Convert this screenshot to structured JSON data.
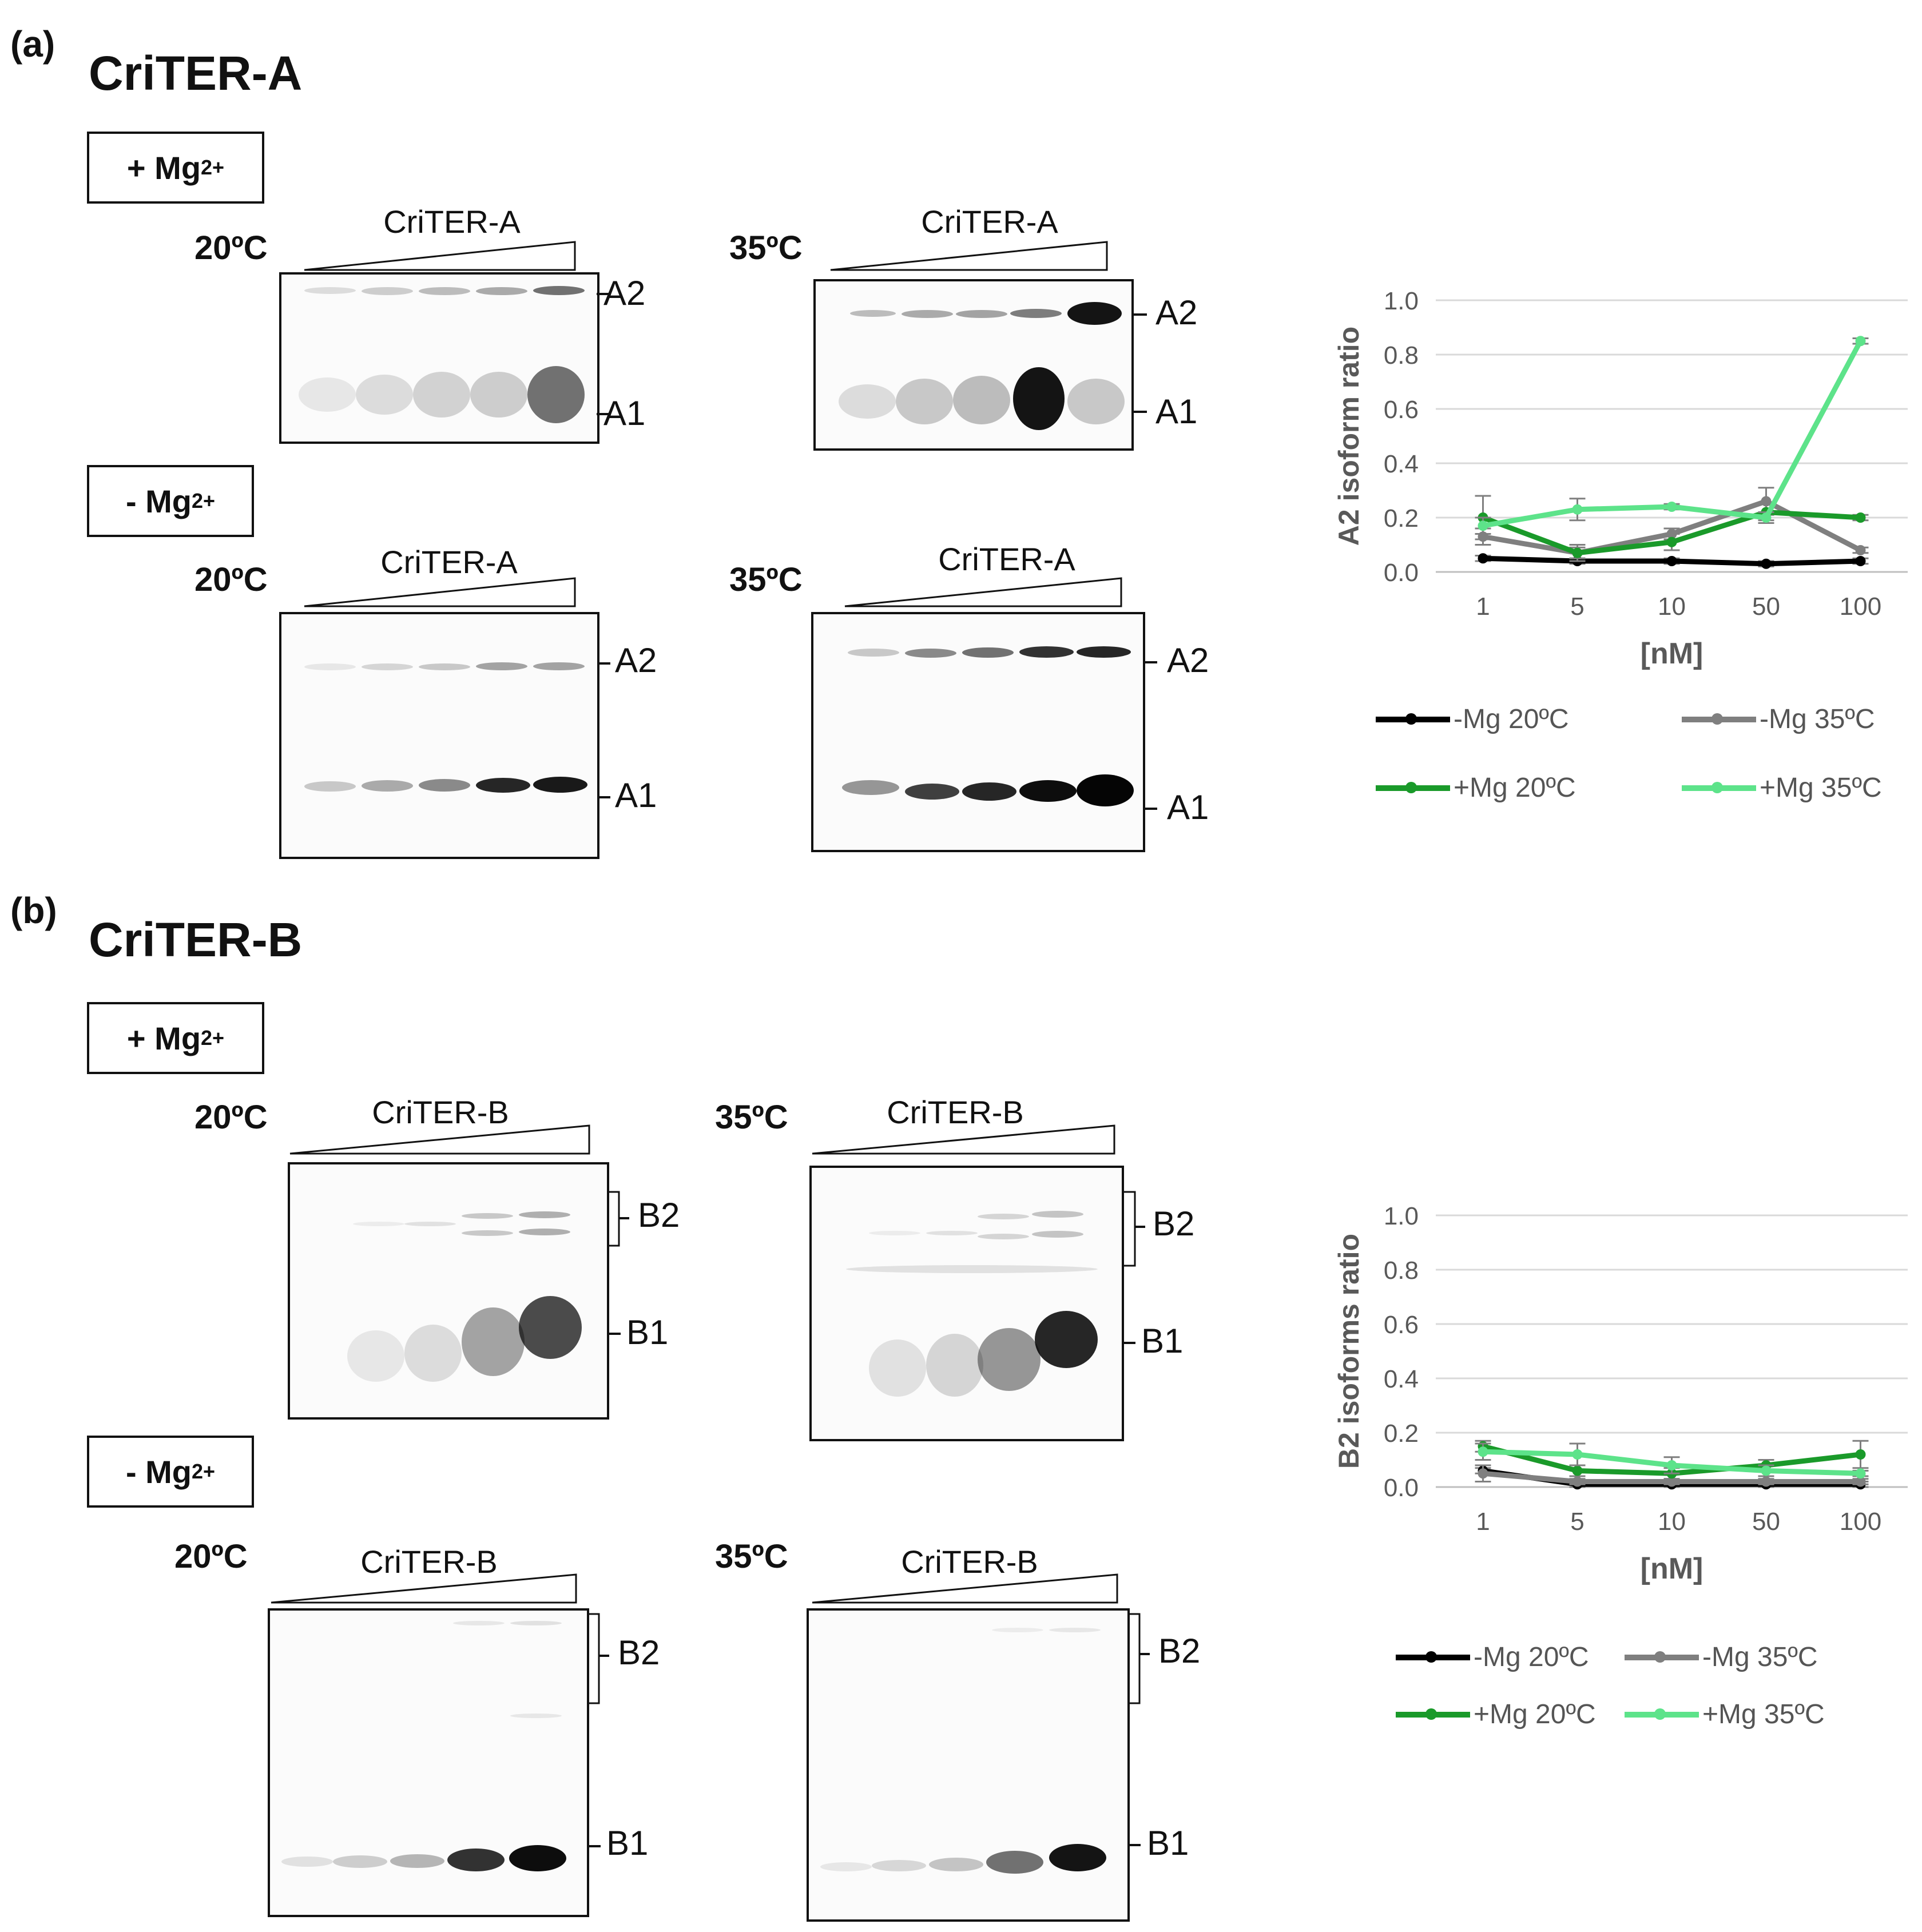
{
  "panel_a": {
    "letter": "(a)",
    "title": "CriTER-A",
    "mg_plus": {
      "text": "+ Mg",
      "sup": "2+"
    },
    "mg_minus": {
      "text": "- Mg",
      "sup": "2+"
    },
    "gels": [
      {
        "temp": "20ºC",
        "label": "CriTER-A",
        "upper": "A2",
        "lower": "A1"
      },
      {
        "temp": "35ºC",
        "label": "CriTER-A",
        "upper": "A2",
        "lower": "A1"
      },
      {
        "temp": "20ºC",
        "label": "CriTER-A",
        "upper": "A2",
        "lower": "A1"
      },
      {
        "temp": "35ºC",
        "label": "CriTER-A",
        "upper": "A2",
        "lower": "A1"
      }
    ]
  },
  "panel_b": {
    "letter": "(b)",
    "title": "CriTER-B",
    "mg_plus": {
      "text": "+ Mg",
      "sup": "2+"
    },
    "mg_minus": {
      "text": "- Mg",
      "sup": "2+"
    },
    "gels": [
      {
        "temp": "20ºC",
        "label": "CriTER-B",
        "upper": "B2",
        "lower": "B1"
      },
      {
        "temp": "35ºC",
        "label": "CriTER-B",
        "upper": "B2",
        "lower": "B1"
      },
      {
        "temp": "20ºC",
        "label": "CriTER-B",
        "upper": "B2",
        "lower": "B1"
      },
      {
        "temp": "35ºC",
        "label": "CriTER-B",
        "upper": "B2",
        "lower": "B1"
      }
    ]
  },
  "chart_data": [
    {
      "type": "line",
      "ylabel": "A2 isoform ratio",
      "xlabel": "[nM]",
      "categories": [
        "1",
        "5",
        "10",
        "50",
        "100"
      ],
      "yticks": [
        "0.0",
        "0.2",
        "0.4",
        "0.6",
        "0.8",
        "1.0"
      ],
      "ylim": [
        0,
        1.0
      ],
      "grid": true,
      "legend": "bottom",
      "series": [
        {
          "name": "-Mg 20ºC",
          "color": "#000000",
          "values": [
            0.05,
            0.04,
            0.04,
            0.03,
            0.04
          ],
          "errors": [
            0.01,
            0.01,
            0.01,
            0.01,
            0.01
          ]
        },
        {
          "name": "-Mg 35ºC",
          "color": "#7f7f7f",
          "values": [
            0.13,
            0.07,
            0.14,
            0.26,
            0.08
          ],
          "errors": [
            0.03,
            0.02,
            0.02,
            0.05,
            0.01
          ]
        },
        {
          "name": "+Mg 20ºC",
          "color": "#1a9a2a",
          "values": [
            0.2,
            0.07,
            0.11,
            0.22,
            0.2
          ],
          "errors": [
            0.08,
            0.03,
            0.03,
            0.03,
            0.01
          ]
        },
        {
          "name": "+Mg 35ºC",
          "color": "#5de38a",
          "values": [
            0.17,
            0.23,
            0.24,
            0.2,
            0.85
          ],
          "errors": [
            0.03,
            0.04,
            0.01,
            0.02,
            0.01
          ]
        }
      ]
    },
    {
      "type": "line",
      "ylabel": "B2 isoforms ratio",
      "xlabel": "[nM]",
      "categories": [
        "1",
        "5",
        "10",
        "50",
        "100"
      ],
      "yticks": [
        "0.0",
        "0.2",
        "0.4",
        "0.6",
        "0.8",
        "1.0"
      ],
      "ylim": [
        0,
        1.0
      ],
      "grid": true,
      "legend": "bottom",
      "series": [
        {
          "name": "-Mg 20ºC",
          "color": "#000000",
          "values": [
            0.06,
            0.01,
            0.01,
            0.01,
            0.01
          ],
          "errors": [
            0.01,
            0.01,
            0.01,
            0.01,
            0.01
          ]
        },
        {
          "name": "-Mg 35ºC",
          "color": "#7f7f7f",
          "values": [
            0.05,
            0.02,
            0.02,
            0.02,
            0.02
          ],
          "errors": [
            0.03,
            0.01,
            0.01,
            0.01,
            0.01
          ]
        },
        {
          "name": "+Mg 20ºC",
          "color": "#1a9a2a",
          "values": [
            0.15,
            0.06,
            0.05,
            0.08,
            0.12
          ],
          "errors": [
            0.02,
            0.02,
            0.02,
            0.02,
            0.05
          ]
        },
        {
          "name": "+Mg 35ºC",
          "color": "#5de38a",
          "values": [
            0.13,
            0.12,
            0.08,
            0.06,
            0.05
          ],
          "errors": [
            0.03,
            0.04,
            0.03,
            0.02,
            0.01
          ]
        }
      ]
    }
  ]
}
